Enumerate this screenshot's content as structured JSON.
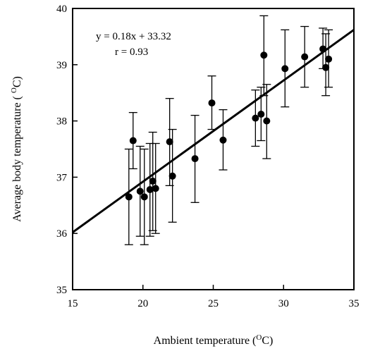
{
  "chart_data": {
    "type": "scatter",
    "xlabel": "Ambient temperature (",
    "xlabel_sup": "O",
    "xlabel_end": "C)",
    "ylabel": "Average body temperature ( ",
    "ylabel_sup": "O",
    "ylabel_end": "C)",
    "xlim": [
      15,
      35
    ],
    "ylim": [
      35,
      40
    ],
    "xticks": [
      "15",
      "20",
      "25",
      "30",
      "35"
    ],
    "yticks": [
      "35",
      "36",
      "37",
      "38",
      "39",
      "40"
    ],
    "grid": false,
    "annotations": {
      "equation": "y = 0.18x + 33.32",
      "r": "r = 0.93"
    },
    "regression": {
      "slope": 0.18,
      "intercept": 33.32
    },
    "points": [
      {
        "x": 19.0,
        "y": 36.65,
        "lo": 35.8,
        "hi": 37.5
      },
      {
        "x": 19.3,
        "y": 37.65,
        "lo": 37.15,
        "hi": 38.15
      },
      {
        "x": 19.8,
        "y": 36.75,
        "lo": 35.95,
        "hi": 37.55
      },
      {
        "x": 20.1,
        "y": 36.65,
        "lo": 35.8,
        "hi": 37.5
      },
      {
        "x": 20.5,
        "y": 36.78,
        "lo": 35.95,
        "hi": 37.6
      },
      {
        "x": 20.7,
        "y": 36.93,
        "lo": 36.05,
        "hi": 37.8
      },
      {
        "x": 20.9,
        "y": 36.8,
        "lo": 36.0,
        "hi": 37.6
      },
      {
        "x": 21.9,
        "y": 37.63,
        "lo": 36.85,
        "hi": 38.4
      },
      {
        "x": 22.1,
        "y": 37.02,
        "lo": 36.2,
        "hi": 37.85
      },
      {
        "x": 23.7,
        "y": 37.33,
        "lo": 36.55,
        "hi": 38.1
      },
      {
        "x": 24.9,
        "y": 38.32,
        "lo": 37.85,
        "hi": 38.8
      },
      {
        "x": 25.7,
        "y": 37.66,
        "lo": 37.13,
        "hi": 38.2
      },
      {
        "x": 28.0,
        "y": 38.05,
        "lo": 37.55,
        "hi": 38.55
      },
      {
        "x": 28.4,
        "y": 38.12,
        "lo": 37.65,
        "hi": 38.6
      },
      {
        "x": 28.6,
        "y": 39.17,
        "lo": 38.45,
        "hi": 39.87
      },
      {
        "x": 28.8,
        "y": 38.0,
        "lo": 37.33,
        "hi": 38.65
      },
      {
        "x": 30.1,
        "y": 38.93,
        "lo": 38.25,
        "hi": 39.62
      },
      {
        "x": 31.5,
        "y": 39.14,
        "lo": 38.6,
        "hi": 39.68
      },
      {
        "x": 32.8,
        "y": 39.28,
        "lo": 38.93,
        "hi": 39.65
      },
      {
        "x": 33.0,
        "y": 38.95,
        "lo": 38.45,
        "hi": 39.55
      },
      {
        "x": 33.2,
        "y": 39.1,
        "lo": 38.6,
        "hi": 39.62
      }
    ],
    "colors": {
      "ink": "#000000",
      "background": "#ffffff"
    }
  }
}
